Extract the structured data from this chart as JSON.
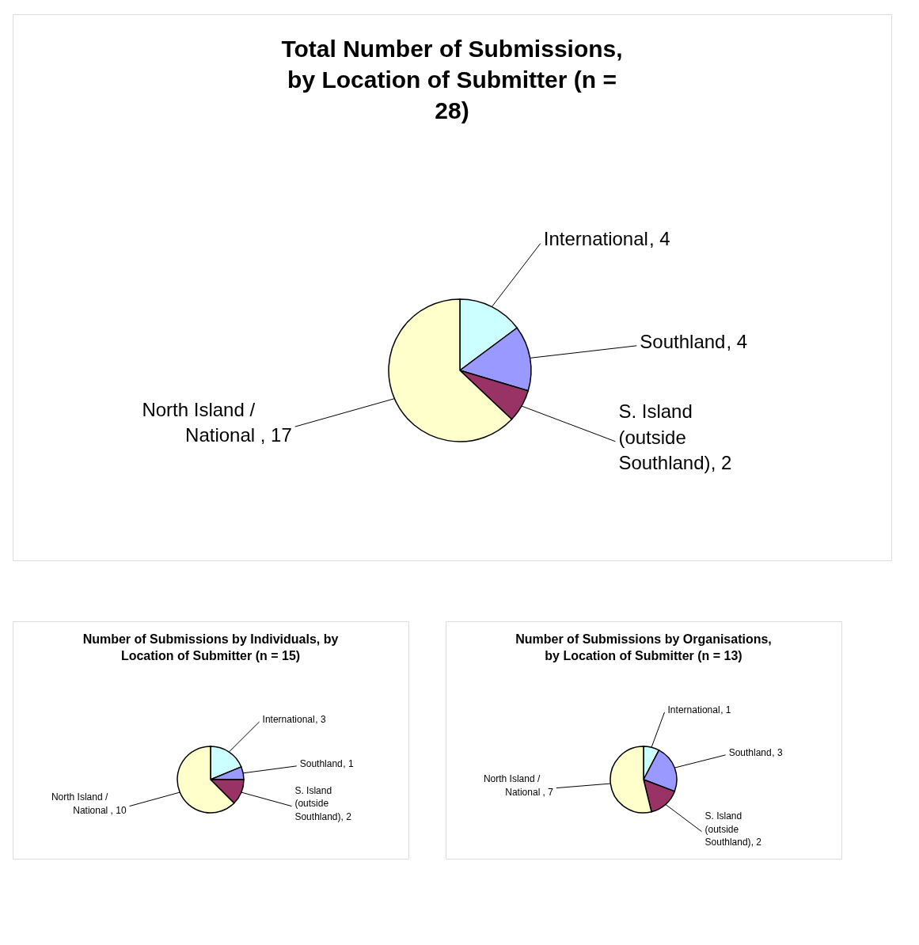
{
  "chart_data": [
    {
      "type": "pie",
      "title": "Total Number of Submissions, by Location of Submitter (n = 28)",
      "categories": [
        "International",
        "Southland",
        "S. Island (outside Southland)",
        "North Island / National"
      ],
      "values": [
        4,
        4,
        2,
        17
      ],
      "value_labels": [
        ", 4",
        ", 4",
        ", 2",
        ", 17"
      ],
      "colors": [
        "#ccffff",
        "#9999ff",
        "#993366",
        "#ffffcc"
      ],
      "legend": false
    },
    {
      "type": "pie",
      "title": "Number of Submissions by Individuals, by Location of Submitter (n = 15)",
      "categories": [
        "International",
        "Southland",
        "S. Island (outside Southland)",
        "North Island / National"
      ],
      "values": [
        3,
        1,
        2,
        10
      ],
      "value_labels": [
        ", 3",
        ", 1",
        ", 2",
        ", 10"
      ],
      "colors": [
        "#ccffff",
        "#9999ff",
        "#993366",
        "#ffffcc"
      ],
      "legend": false
    },
    {
      "type": "pie",
      "title": "Number of Submissions by Organisations, by Location of Submitter (n = 13)",
      "categories": [
        "International",
        "Southland",
        "S. Island (outside Southland)",
        "North Island / National"
      ],
      "values": [
        1,
        3,
        2,
        7
      ],
      "value_labels": [
        ", 1",
        ", 3",
        ", 2",
        ", 7"
      ],
      "colors": [
        "#ccffff",
        "#9999ff",
        "#993366",
        "#ffffcc"
      ],
      "legend": false
    }
  ]
}
